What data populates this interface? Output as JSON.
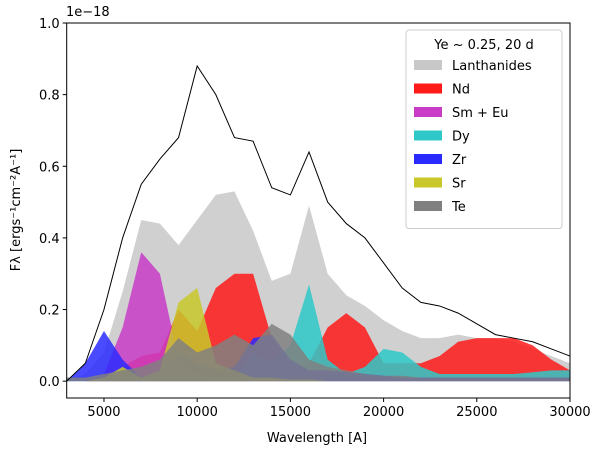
{
  "chart_data": {
    "type": "area",
    "offset_label": "1e−18",
    "x_label": "Wavelength [A]",
    "y_label": "Fλ [ergs⁻¹cm⁻²A⁻¹]",
    "legend_title": "Ye ~ 0.25, 20 d",
    "legend_position": "upper right",
    "x": [
      3000,
      4000,
      5000,
      6000,
      7000,
      8000,
      9000,
      10000,
      11000,
      12000,
      13000,
      14000,
      15000,
      16000,
      17000,
      18000,
      19000,
      20000,
      21000,
      22000,
      23000,
      24000,
      25000,
      26000,
      27000,
      28000,
      29000,
      30000
    ],
    "xlim": [
      3000,
      30000
    ],
    "ylim": [
      -0.047,
      1.0
    ],
    "xticks": [
      5000,
      10000,
      15000,
      20000,
      25000,
      30000
    ],
    "yticks": [
      {
        "value": 0,
        "label": "0.0"
      },
      0.2,
      0.4,
      0.6,
      0.8,
      {
        "value": 1,
        "label": "1.0"
      }
    ],
    "series": [
      {
        "color": "#000000",
        "style": "line",
        "values": [
          0.0,
          0.05,
          0.2,
          0.4,
          0.55,
          0.62,
          0.68,
          0.88,
          0.8,
          0.68,
          0.67,
          0.54,
          0.52,
          0.64,
          0.5,
          0.44,
          0.4,
          0.33,
          0.26,
          0.22,
          0.21,
          0.19,
          0.16,
          0.13,
          0.12,
          0.11,
          0.09,
          0.07
        ]
      },
      {
        "name": "Lanthanides",
        "color": "#c8c8c8",
        "style": "area",
        "values": [
          0,
          0.02,
          0.08,
          0.25,
          0.45,
          0.44,
          0.38,
          0.45,
          0.52,
          0.53,
          0.42,
          0.28,
          0.3,
          0.49,
          0.3,
          0.24,
          0.21,
          0.17,
          0.14,
          0.12,
          0.12,
          0.13,
          0.12,
          0.12,
          0.11,
          0.09,
          0.07,
          0.05
        ]
      },
      {
        "name": "Nd",
        "color": "#ff1a1a",
        "style": "area",
        "values": [
          0,
          0,
          0.01,
          0.04,
          0.07,
          0.08,
          0.2,
          0.14,
          0.26,
          0.3,
          0.3,
          0.12,
          0.04,
          0.05,
          0.15,
          0.19,
          0.15,
          0.05,
          0.05,
          0.05,
          0.07,
          0.11,
          0.12,
          0.12,
          0.12,
          0.1,
          0.06,
          0.03
        ]
      },
      {
        "name": "Sm + Eu",
        "color": "#c83cc8",
        "style": "area",
        "values": [
          0,
          0,
          0.02,
          0.15,
          0.36,
          0.3,
          0.06,
          0.02,
          0.01,
          0.005,
          0,
          0,
          0,
          0,
          0,
          0,
          0,
          0,
          0,
          0,
          0,
          0,
          0,
          0,
          0,
          0,
          0,
          0
        ]
      },
      {
        "name": "Dy",
        "color": "#2ec8c8",
        "style": "area",
        "values": [
          0.01,
          0.01,
          0.01,
          0.01,
          0.01,
          0.01,
          0.01,
          0.01,
          0.01,
          0.01,
          0.08,
          0.05,
          0.1,
          0.27,
          0.06,
          0.02,
          0.04,
          0.09,
          0.08,
          0.04,
          0.02,
          0.02,
          0.02,
          0.02,
          0.02,
          0.025,
          0.03,
          0.03
        ]
      },
      {
        "name": "Zr",
        "color": "#2a2aff",
        "style": "area",
        "values": [
          0,
          0.05,
          0.14,
          0.06,
          0.01,
          0.03,
          0.08,
          0.05,
          0.03,
          0.04,
          0.12,
          0.13,
          0.06,
          0.03,
          0.03,
          0.025,
          0.02,
          0.015,
          0.01,
          0.01,
          0.01,
          0.01,
          0.01,
          0.01,
          0.01,
          0.01,
          0.01,
          0.01
        ]
      },
      {
        "name": "Sr",
        "color": "#c8c82a",
        "style": "area",
        "values": [
          0,
          0,
          0.01,
          0.04,
          0.01,
          0.03,
          0.22,
          0.26,
          0.05,
          0.03,
          0.01,
          0.01,
          0.005,
          0.005,
          0,
          0,
          0,
          0,
          0,
          0,
          0,
          0,
          0,
          0,
          0,
          0,
          0,
          0
        ]
      },
      {
        "name": "Te",
        "color": "#808080",
        "style": "area",
        "values": [
          0.01,
          0.01,
          0.02,
          0.03,
          0.04,
          0.06,
          0.12,
          0.08,
          0.1,
          0.13,
          0.1,
          0.16,
          0.13,
          0.06,
          0.04,
          0.03,
          0.02,
          0.015,
          0.015,
          0.01,
          0.01,
          0.01,
          0.01,
          0.01,
          0.01,
          0.01,
          0.01,
          0.01
        ]
      }
    ]
  }
}
